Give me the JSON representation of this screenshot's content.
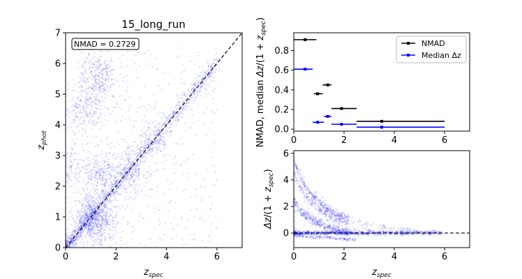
{
  "chart_data": [
    {
      "type": "scatter",
      "title": "15_long_run",
      "xlabel": "z_spec",
      "ylabel": "z_phot",
      "xlim": [
        0,
        7
      ],
      "ylim": [
        0,
        7
      ],
      "xticks": [
        0,
        2,
        4,
        6
      ],
      "yticks": [
        0,
        1,
        2,
        3,
        4,
        5,
        6,
        7
      ],
      "annotation": "NMAD = 0.2729",
      "reference_line": "y = x (dashed)",
      "point_color": "#0000ff",
      "density_clusters": [
        {
          "x": 1.0,
          "y": 1.0,
          "weight": 1.0
        },
        {
          "x": 1.3,
          "y": 5.6,
          "weight": 0.8
        },
        {
          "x": 0.8,
          "y": 4.6,
          "weight": 0.6
        },
        {
          "x": 1.4,
          "y": 2.3,
          "weight": 0.7
        },
        {
          "x": 2.5,
          "y": 2.5,
          "weight": 0.6
        },
        {
          "x": 0.1,
          "y": 2.6,
          "weight": 0.4
        },
        {
          "x": 3.5,
          "y": 3.5,
          "weight": 0.4
        },
        {
          "x": 1.4,
          "y": 0.8,
          "weight": 0.8
        }
      ]
    },
    {
      "type": "errorbar",
      "xlabel": "",
      "ylabel": "NMAD, median Δz/(1 + z_spec)",
      "xlim": [
        0,
        7
      ],
      "ylim": [
        -0.02,
        0.98
      ],
      "xticks": [
        0,
        2,
        4,
        6
      ],
      "yticks": [
        0.0,
        0.2,
        0.4,
        0.6,
        0.8
      ],
      "legend_position": "upper right",
      "series": [
        {
          "name": "NMAD",
          "color": "#000000",
          "points": [
            {
              "x": 0.45,
              "xmin": 0.0,
              "xmax": 0.9,
              "y": 0.91
            },
            {
              "x": 0.95,
              "xmin": 0.8,
              "xmax": 1.15,
              "y": 0.36
            },
            {
              "x": 1.35,
              "xmin": 1.15,
              "xmax": 1.5,
              "y": 0.45
            },
            {
              "x": 1.9,
              "xmin": 1.5,
              "xmax": 2.5,
              "y": 0.21
            },
            {
              "x": 3.5,
              "xmin": 2.5,
              "xmax": 6.0,
              "y": 0.08
            }
          ]
        },
        {
          "name": "Median Δz",
          "color": "#0000ff",
          "points": [
            {
              "x": 0.45,
              "xmin": 0.0,
              "xmax": 0.75,
              "y": 0.61
            },
            {
              "x": 0.95,
              "xmin": 0.75,
              "xmax": 1.2,
              "y": 0.07
            },
            {
              "x": 1.35,
              "xmin": 1.2,
              "xmax": 1.5,
              "y": 0.13
            },
            {
              "x": 1.9,
              "xmin": 1.5,
              "xmax": 2.5,
              "y": 0.05
            },
            {
              "x": 3.5,
              "xmin": 2.5,
              "xmax": 6.0,
              "y": 0.02
            }
          ]
        }
      ]
    },
    {
      "type": "scatter",
      "xlabel": "z_spec",
      "ylabel": "Δz/(1 + z_spec)",
      "xlim": [
        0,
        7
      ],
      "ylim": [
        -1.1,
        6.2
      ],
      "xticks": [
        0,
        2,
        4,
        6
      ],
      "yticks": [
        0,
        2,
        4,
        6
      ],
      "reference_line": "y = 0 (dashed)",
      "point_color": "#0000ff"
    }
  ]
}
